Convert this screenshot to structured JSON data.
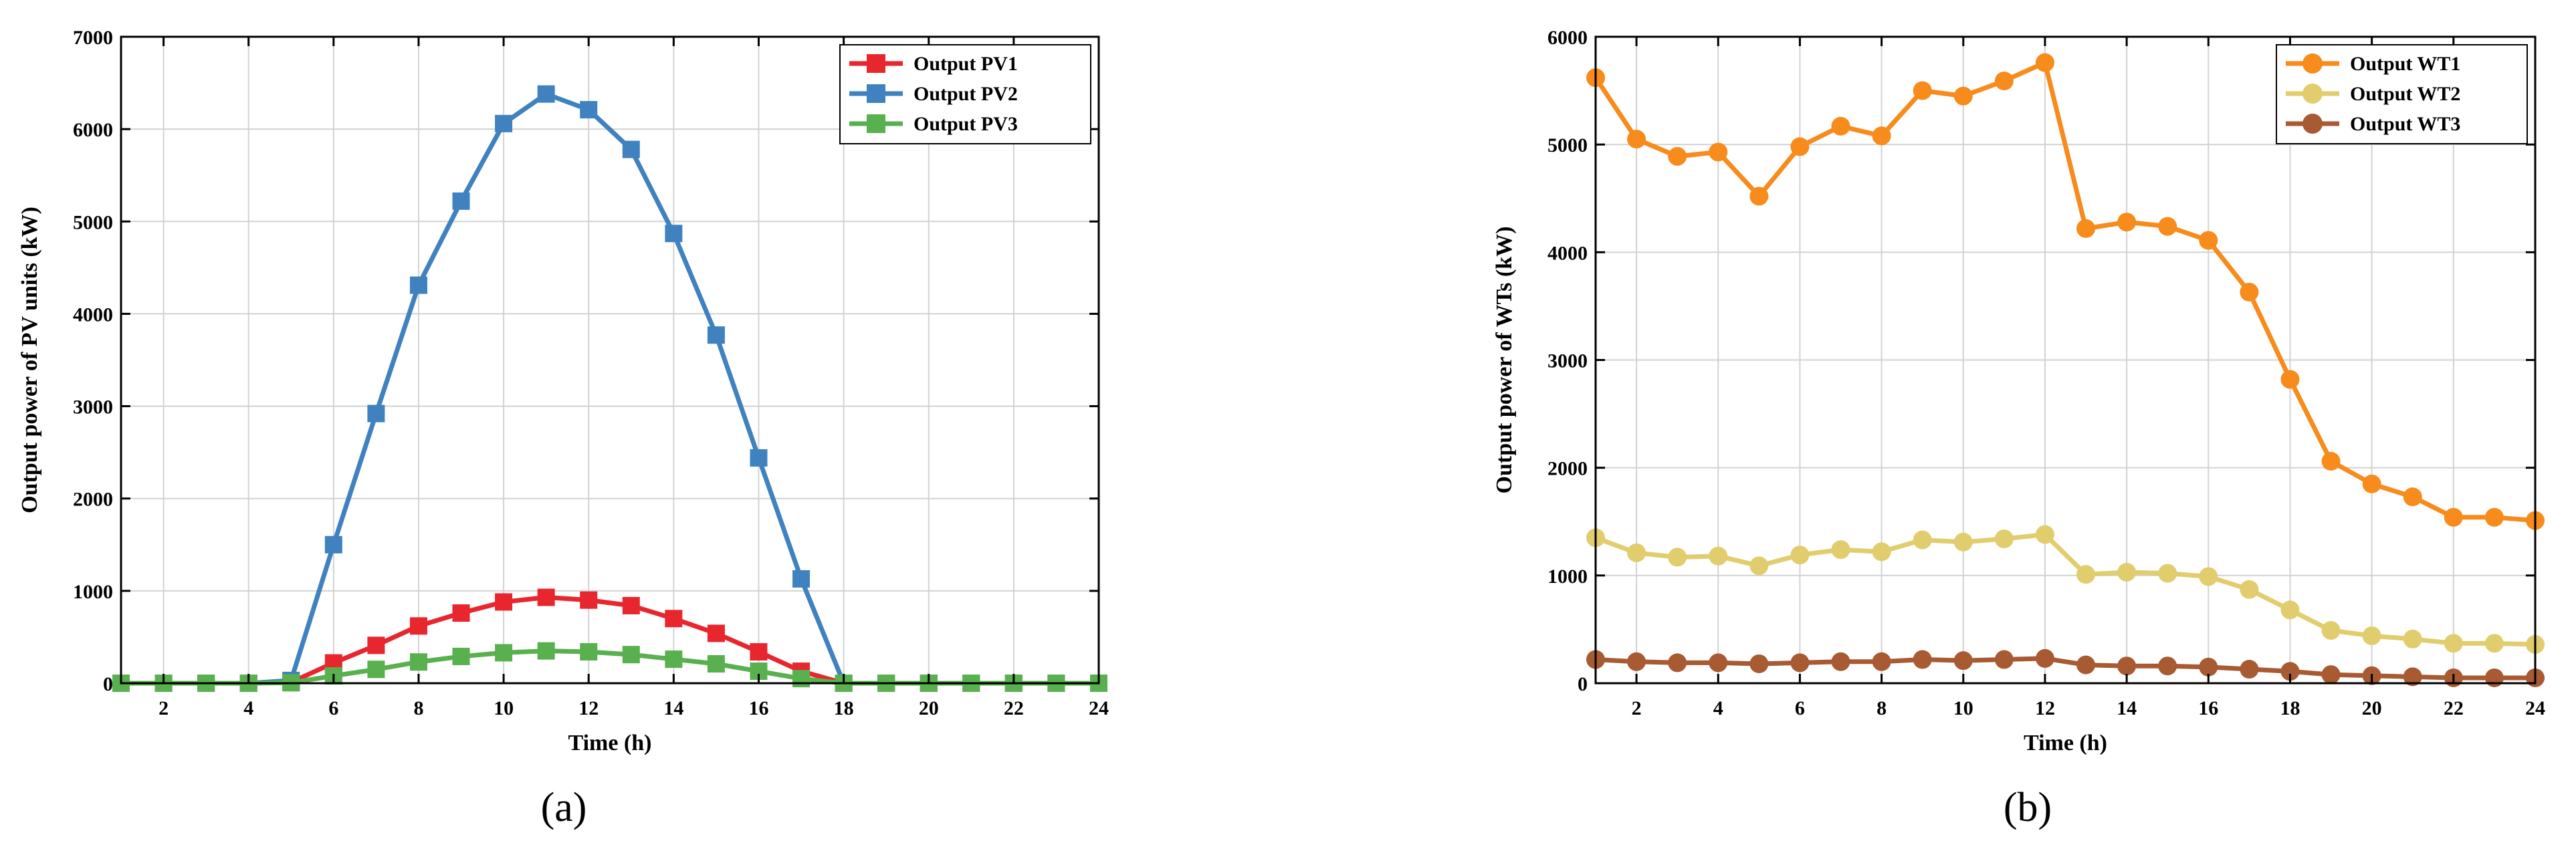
{
  "chart_data": [
    {
      "type": "line",
      "panel_label": "(a)",
      "xlabel": "Time (h)",
      "ylabel": "Output power of PV units (kW)",
      "xlim": [
        1,
        24
      ],
      "ylim": [
        0,
        7000
      ],
      "xticks": [
        2,
        4,
        6,
        8,
        10,
        12,
        14,
        16,
        18,
        20,
        22,
        24
      ],
      "yticks": [
        0,
        1000,
        2000,
        3000,
        4000,
        5000,
        6000,
        7000
      ],
      "grid": true,
      "legend_position": "top-right",
      "marker": "square",
      "x": [
        1,
        2,
        3,
        4,
        5,
        6,
        7,
        8,
        9,
        10,
        11,
        12,
        13,
        14,
        15,
        16,
        17,
        18,
        19,
        20,
        21,
        22,
        23,
        24
      ],
      "series": [
        {
          "name": "Output PV1",
          "color": "#e8262e",
          "values": [
            0,
            0,
            0,
            0,
            10,
            220,
            410,
            620,
            760,
            880,
            930,
            900,
            840,
            700,
            540,
            340,
            130,
            0,
            0,
            0,
            0,
            0,
            0,
            0
          ]
        },
        {
          "name": "Output PV2",
          "color": "#3f82bf",
          "values": [
            0,
            0,
            0,
            0,
            30,
            1500,
            2920,
            4310,
            5220,
            6060,
            6380,
            6210,
            5780,
            4870,
            3770,
            2440,
            1130,
            0,
            0,
            0,
            0,
            0,
            0,
            0
          ]
        },
        {
          "name": "Output PV3",
          "color": "#59b04f",
          "values": [
            0,
            0,
            0,
            0,
            5,
            80,
            150,
            230,
            290,
            330,
            350,
            340,
            310,
            260,
            210,
            130,
            50,
            0,
            0,
            0,
            0,
            0,
            0,
            0
          ]
        }
      ]
    },
    {
      "type": "line",
      "panel_label": "(b)",
      "xlabel": "Time (h)",
      "ylabel": "Output power of WTs (kW)",
      "xlim": [
        1,
        24
      ],
      "ylim": [
        0,
        6000
      ],
      "xticks": [
        2,
        4,
        6,
        8,
        10,
        12,
        14,
        16,
        18,
        20,
        22,
        24
      ],
      "yticks": [
        0,
        1000,
        2000,
        3000,
        4000,
        5000,
        6000
      ],
      "grid": true,
      "legend_position": "top-right",
      "marker": "circle",
      "x": [
        1,
        2,
        3,
        4,
        5,
        6,
        7,
        8,
        9,
        10,
        11,
        12,
        13,
        14,
        15,
        16,
        17,
        18,
        19,
        20,
        21,
        22,
        23,
        24
      ],
      "series": [
        {
          "name": "Output WT1",
          "color": "#f78b1c",
          "values": [
            5620,
            5050,
            4890,
            4930,
            4520,
            4980,
            5170,
            5080,
            5500,
            5450,
            5590,
            5760,
            4220,
            4280,
            4240,
            4110,
            3630,
            2820,
            2060,
            1850,
            1730,
            1540,
            1540,
            1510
          ]
        },
        {
          "name": "Output WT2",
          "color": "#e2cd6e",
          "values": [
            1350,
            1210,
            1170,
            1180,
            1090,
            1190,
            1240,
            1220,
            1330,
            1310,
            1340,
            1380,
            1010,
            1030,
            1020,
            990,
            870,
            680,
            490,
            440,
            410,
            370,
            370,
            360
          ]
        },
        {
          "name": "Output WT3",
          "color": "#a85a32",
          "values": [
            220,
            200,
            190,
            190,
            180,
            190,
            200,
            200,
            220,
            210,
            220,
            230,
            170,
            160,
            160,
            150,
            130,
            110,
            80,
            70,
            60,
            50,
            50,
            50
          ]
        }
      ]
    }
  ]
}
